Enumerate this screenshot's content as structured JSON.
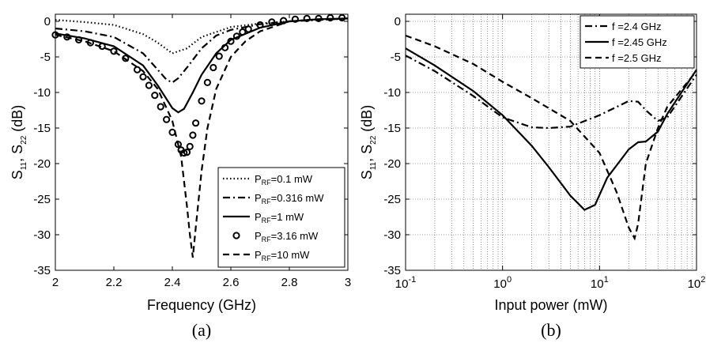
{
  "chart_data": [
    {
      "type": "line",
      "panel": "(a)",
      "xlabel": "Frequency (GHz)",
      "ylabel_main": "S",
      "ylabel_sub1": "11",
      "ylabel_mid": ", S",
      "ylabel_sub2": "22",
      "ylabel_unit": " (dB)",
      "xlim": [
        2,
        3
      ],
      "ylim": [
        -35,
        1
      ],
      "xscale": "linear",
      "xticks": [
        "2",
        "2.2",
        "2.4",
        "2.6",
        "2.8",
        "3"
      ],
      "yticks": [
        "0",
        "-5",
        "-10",
        "-15",
        "-20",
        "-25",
        "-30",
        "-35"
      ],
      "grid": false,
      "legend_position": "bottom-right",
      "series": [
        {
          "legend_prefix": "P",
          "legend_sub": "RF",
          "legend_suffix": "=0.1 mW",
          "style": "dotted",
          "x": [
            2.0,
            2.1,
            2.2,
            2.3,
            2.35,
            2.4,
            2.45,
            2.5,
            2.6,
            2.7,
            2.8,
            2.9,
            3.0
          ],
          "y": [
            0.2,
            -0.1,
            -0.5,
            -1.8,
            -3.0,
            -4.5,
            -3.8,
            -2.2,
            -0.8,
            -0.3,
            0.0,
            0.2,
            0.4
          ]
        },
        {
          "legend_prefix": "P",
          "legend_sub": "RF",
          "legend_suffix": "=0.316 mW",
          "style": "dashdot",
          "x": [
            2.0,
            2.1,
            2.2,
            2.3,
            2.35,
            2.38,
            2.4,
            2.42,
            2.45,
            2.5,
            2.55,
            2.6,
            2.7,
            2.8,
            2.9,
            3.0
          ],
          "y": [
            -1.0,
            -1.4,
            -2.2,
            -4.5,
            -6.8,
            -8.2,
            -8.6,
            -8.0,
            -6.5,
            -3.8,
            -2.0,
            -1.2,
            -0.4,
            0.0,
            0.2,
            0.4
          ]
        },
        {
          "legend_prefix": "P",
          "legend_sub": "RF",
          "legend_suffix": "=1 mW",
          "style": "solid",
          "x": [
            2.0,
            2.1,
            2.2,
            2.3,
            2.35,
            2.4,
            2.42,
            2.44,
            2.47,
            2.5,
            2.55,
            2.6,
            2.7,
            2.8,
            2.9,
            3.0
          ],
          "y": [
            -1.7,
            -2.4,
            -3.5,
            -6.2,
            -9.0,
            -12.2,
            -12.8,
            -12.3,
            -10.0,
            -7.5,
            -4.5,
            -2.6,
            -0.9,
            0.0,
            0.3,
            0.4
          ]
        },
        {
          "legend_prefix": "P",
          "legend_sub": "RF",
          "legend_suffix": "=3.16 mW",
          "style": "circles",
          "x": [
            2.0,
            2.04,
            2.08,
            2.12,
            2.16,
            2.2,
            2.24,
            2.28,
            2.3,
            2.32,
            2.34,
            2.36,
            2.38,
            2.4,
            2.42,
            2.43,
            2.44,
            2.45,
            2.46,
            2.47,
            2.48,
            2.5,
            2.52,
            2.54,
            2.56,
            2.58,
            2.6,
            2.62,
            2.64,
            2.66,
            2.7,
            2.74,
            2.78,
            2.82,
            2.86,
            2.9,
            2.94,
            2.98
          ],
          "y": [
            -1.9,
            -2.2,
            -2.6,
            -3.0,
            -3.5,
            -4.2,
            -5.2,
            -6.8,
            -7.8,
            -9.0,
            -10.4,
            -12.0,
            -13.8,
            -15.6,
            -17.3,
            -18.1,
            -18.5,
            -18.4,
            -17.6,
            -16.0,
            -14.3,
            -11.2,
            -8.6,
            -6.5,
            -4.9,
            -3.7,
            -2.8,
            -2.1,
            -1.5,
            -1.1,
            -0.5,
            -0.1,
            0.1,
            0.3,
            0.4,
            0.4,
            0.5,
            0.5
          ]
        },
        {
          "legend_prefix": "P",
          "legend_sub": "RF",
          "legend_suffix": "=10 mW",
          "style": "dashed",
          "x": [
            2.0,
            2.1,
            2.2,
            2.3,
            2.35,
            2.4,
            2.43,
            2.45,
            2.46,
            2.47,
            2.48,
            2.5,
            2.52,
            2.55,
            2.6,
            2.65,
            2.7,
            2.8,
            2.9,
            3.0
          ],
          "y": [
            -1.9,
            -2.8,
            -4.2,
            -7.0,
            -9.5,
            -14.0,
            -19.0,
            -26.0,
            -30.0,
            -33.2,
            -29.0,
            -21.0,
            -15.0,
            -9.5,
            -5.0,
            -2.8,
            -1.4,
            0.0,
            0.3,
            0.4
          ]
        }
      ]
    },
    {
      "type": "line",
      "panel": "(b)",
      "xlabel": "Input power (mW)",
      "ylabel_main": "S",
      "ylabel_sub1": "11",
      "ylabel_mid": ", S",
      "ylabel_sub2": "22",
      "ylabel_unit": " (dB)",
      "xlim": [
        0.1,
        100
      ],
      "ylim": [
        -35,
        1
      ],
      "xscale": "log",
      "xtick_base": "10",
      "xtick_exps": [
        "-1",
        "0",
        "1",
        "2"
      ],
      "yticks": [
        "0",
        "-5",
        "-10",
        "-15",
        "-20",
        "-25",
        "-30",
        "-35"
      ],
      "grid": true,
      "legend_position": "top-right",
      "series": [
        {
          "legend": "f =2.4 GHz",
          "style": "dashdot",
          "x": [
            0.1,
            0.2,
            0.5,
            1.0,
            2.0,
            3.0,
            5.0,
            10.0,
            20.0,
            25.0,
            30.0,
            40.0,
            50.0,
            100.0
          ],
          "y": [
            -4.8,
            -7.0,
            -10.5,
            -13.5,
            -14.9,
            -15.0,
            -14.8,
            -13.2,
            -11.2,
            -11.3,
            -12.5,
            -14.0,
            -13.5,
            -7.5
          ]
        },
        {
          "legend": "f =2.45 GHz",
          "style": "solid",
          "x": [
            0.1,
            0.2,
            0.5,
            1.0,
            2.0,
            3.0,
            5.0,
            7.0,
            9.0,
            12.0,
            20.0,
            25.0,
            30.0,
            40.0,
            50.0,
            100.0
          ],
          "y": [
            -3.8,
            -6.2,
            -9.8,
            -13.2,
            -17.5,
            -20.5,
            -24.5,
            -26.5,
            -25.8,
            -22.0,
            -18.0,
            -17.0,
            -16.9,
            -15.5,
            -13.0,
            -6.8
          ]
        },
        {
          "legend": "f =2.5 GHz",
          "style": "dashed",
          "x": [
            0.1,
            0.2,
            0.5,
            1.0,
            2.0,
            5.0,
            10.0,
            15.0,
            20.0,
            23.0,
            25.0,
            30.0,
            40.0,
            50.0,
            100.0
          ],
          "y": [
            -2.0,
            -3.5,
            -6.0,
            -8.5,
            -10.8,
            -14.0,
            -18.5,
            -24.0,
            -29.0,
            -30.5,
            -28.5,
            -20.0,
            -15.0,
            -12.0,
            -7.0
          ]
        }
      ]
    }
  ]
}
